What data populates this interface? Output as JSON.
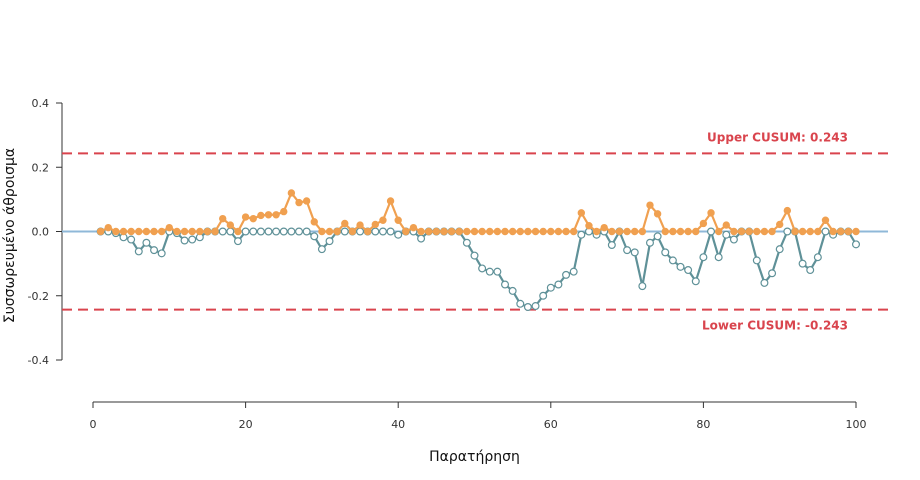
{
  "chart_data": {
    "type": "line",
    "title": "",
    "xlabel": "Παρατήρηση",
    "ylabel": "Συσσωρευμένο άθροισμα",
    "xlim": [
      0,
      100
    ],
    "ylim": [
      -0.4,
      0.4
    ],
    "x_ticks": [
      0,
      20,
      40,
      60,
      80,
      100
    ],
    "y_ticks": [
      -0.4,
      -0.2,
      0.0,
      0.2,
      0.4
    ],
    "grid": false,
    "legend": "none",
    "center_line": 0.0,
    "upper_limit": {
      "value": 0.243,
      "label": "Upper CUSUM: 0.243"
    },
    "lower_limit": {
      "value": -0.243,
      "label": "Lower CUSUM: -0.243"
    },
    "colors": {
      "upper_series": "#f0a050",
      "lower_series": "#5f9198",
      "limit": "#d9444d",
      "center": "#8fb8d8",
      "axis": "#333333"
    },
    "x": [
      1,
      2,
      3,
      4,
      5,
      6,
      7,
      8,
      9,
      10,
      11,
      12,
      13,
      14,
      15,
      16,
      17,
      18,
      19,
      20,
      21,
      22,
      23,
      24,
      25,
      26,
      27,
      28,
      29,
      30,
      31,
      32,
      33,
      34,
      35,
      36,
      37,
      38,
      39,
      40,
      41,
      42,
      43,
      44,
      45,
      46,
      47,
      48,
      49,
      50,
      51,
      52,
      53,
      54,
      55,
      56,
      57,
      58,
      59,
      60,
      61,
      62,
      63,
      64,
      65,
      66,
      67,
      68,
      69,
      70,
      71,
      72,
      73,
      74,
      75,
      76,
      77,
      78,
      79,
      80,
      81,
      82,
      83,
      84,
      85,
      86,
      87,
      88,
      89,
      90,
      91,
      92,
      93,
      94,
      95,
      96,
      97,
      98,
      99,
      100
    ],
    "series": [
      {
        "role": "upper",
        "values": [
          0.0,
          0.012,
          0.0,
          0.0,
          0.0,
          0.0,
          0.0,
          0.0,
          0.0,
          0.012,
          0.0,
          0.0,
          0.0,
          0.0,
          0.0,
          0.0,
          0.04,
          0.02,
          0.0,
          0.045,
          0.04,
          0.05,
          0.052,
          0.052,
          0.062,
          0.12,
          0.09,
          0.095,
          0.03,
          0.0,
          0.0,
          0.0,
          0.025,
          0.0,
          0.02,
          0.0,
          0.022,
          0.035,
          0.095,
          0.035,
          0.0,
          0.012,
          0.0,
          0.0,
          0.0,
          0.0,
          0.0,
          0.0,
          0.0,
          0.0,
          0.0,
          0.0,
          0.0,
          0.0,
          0.0,
          0.0,
          0.0,
          0.0,
          0.0,
          0.0,
          0.0,
          0.0,
          0.0,
          0.058,
          0.018,
          0.0,
          0.012,
          0.0,
          0.0,
          0.0,
          0.0,
          0.0,
          0.082,
          0.055,
          0.0,
          0.0,
          0.0,
          0.0,
          0.0,
          0.025,
          0.058,
          0.0,
          0.02,
          0.0,
          0.0,
          0.0,
          0.0,
          0.0,
          0.0,
          0.022,
          0.065,
          0.0,
          0.0,
          0.0,
          0.0,
          0.035,
          0.0,
          0.0,
          0.0,
          0.0
        ]
      },
      {
        "role": "lower",
        "values": [
          0.0,
          0.0,
          -0.005,
          -0.018,
          -0.025,
          -0.062,
          -0.035,
          -0.058,
          -0.068,
          0.0,
          -0.005,
          -0.028,
          -0.025,
          -0.018,
          0.0,
          0.0,
          0.0,
          0.0,
          -0.03,
          0.0,
          0.0,
          0.0,
          0.0,
          0.0,
          0.0,
          0.0,
          0.0,
          0.0,
          -0.015,
          -0.055,
          -0.03,
          0.0,
          0.0,
          0.0,
          0.0,
          0.0,
          0.0,
          0.0,
          0.0,
          -0.01,
          0.0,
          0.0,
          -0.022,
          0.0,
          0.0,
          0.0,
          0.0,
          0.0,
          -0.035,
          -0.075,
          -0.115,
          -0.125,
          -0.125,
          -0.165,
          -0.185,
          -0.225,
          -0.235,
          -0.232,
          -0.2,
          -0.175,
          -0.165,
          -0.135,
          -0.125,
          -0.01,
          0.0,
          -0.01,
          0.0,
          -0.042,
          0.0,
          -0.058,
          -0.065,
          -0.17,
          -0.035,
          -0.015,
          -0.065,
          -0.09,
          -0.11,
          -0.12,
          -0.155,
          -0.08,
          0.0,
          -0.08,
          -0.01,
          -0.025,
          0.0,
          0.0,
          -0.09,
          -0.16,
          -0.13,
          -0.055,
          0.0,
          0.0,
          -0.1,
          -0.12,
          -0.08,
          0.0,
          -0.01,
          0.0,
          0.0,
          -0.04
        ]
      }
    ]
  }
}
